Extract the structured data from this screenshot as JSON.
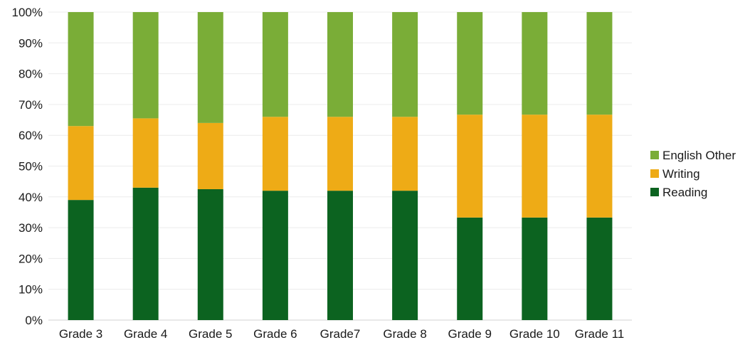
{
  "chart_data": {
    "type": "bar",
    "stacked": true,
    "percent_stacked": true,
    "categories": [
      "Grade 3",
      "Grade 4",
      "Grade 5",
      "Grade 6",
      "Grade7",
      "Grade 8",
      "Grade 9",
      "Grade 10",
      "Grade 11"
    ],
    "series": [
      {
        "name": "Reading",
        "color": "#0c6320",
        "values": [
          39,
          43,
          42.5,
          42,
          42,
          42,
          33.3,
          33.3,
          33.3
        ]
      },
      {
        "name": "Writing",
        "color": "#eeab16",
        "values": [
          24,
          22.5,
          21.5,
          24,
          24,
          24,
          33.4,
          33.4,
          33.4
        ]
      },
      {
        "name": "English Other",
        "color": "#7aad37",
        "values": [
          37,
          34.5,
          36,
          34,
          34,
          34,
          33.3,
          33.3,
          33.3
        ]
      }
    ],
    "ylim": [
      0,
      100
    ],
    "yticks": [
      "0%",
      "10%",
      "20%",
      "30%",
      "40%",
      "50%",
      "60%",
      "70%",
      "80%",
      "90%",
      "100%"
    ],
    "legend": {
      "position": "right",
      "entries": [
        "English Other",
        "Writing",
        "Reading"
      ]
    },
    "grid": true
  }
}
